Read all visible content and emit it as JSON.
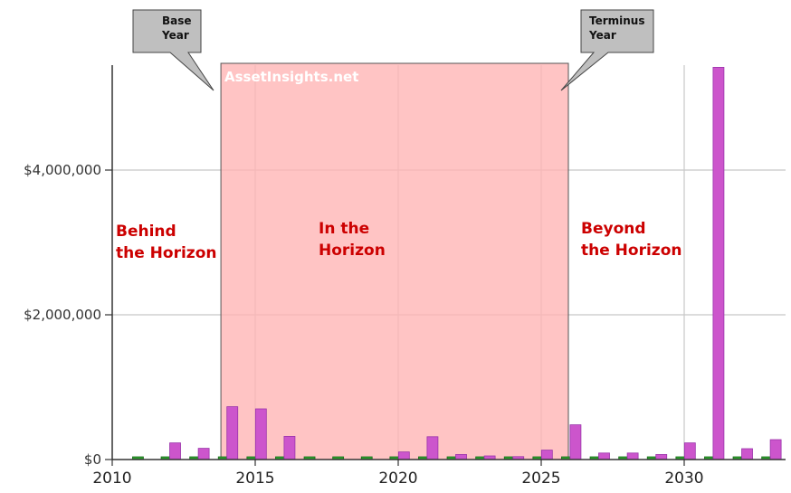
{
  "chart_data": {
    "type": "bar",
    "title": "",
    "xlabel": "",
    "ylabel": "",
    "xlim": [
      2010,
      2033.6
    ],
    "ylim": [
      0,
      5600000
    ],
    "x_ticks": [
      2010,
      2015,
      2020,
      2025,
      2030
    ],
    "x_tick_labels": [
      "2010",
      "2015",
      "2020",
      "2025",
      "2030"
    ],
    "y_ticks": [
      0,
      2000000,
      4000000
    ],
    "y_tick_labels": [
      "$0",
      "$2,000,000",
      "$4,000,000"
    ],
    "grid": true,
    "series": [
      {
        "color": "#2e9e2e",
        "points": [
          {
            "x": 2010.9,
            "y": 35000
          },
          {
            "x": 2011.9,
            "y": 35000
          },
          {
            "x": 2012.9,
            "y": 35000
          },
          {
            "x": 2013.9,
            "y": 35000
          },
          {
            "x": 2014.9,
            "y": 35000
          },
          {
            "x": 2015.9,
            "y": 35000
          },
          {
            "x": 2016.9,
            "y": 35000
          },
          {
            "x": 2017.9,
            "y": 35000
          },
          {
            "x": 2018.9,
            "y": 35000
          },
          {
            "x": 2019.9,
            "y": 35000
          },
          {
            "x": 2020.9,
            "y": 35000
          },
          {
            "x": 2021.9,
            "y": 35000
          },
          {
            "x": 2022.9,
            "y": 35000
          },
          {
            "x": 2023.9,
            "y": 35000
          },
          {
            "x": 2024.9,
            "y": 35000
          },
          {
            "x": 2025.9,
            "y": 35000
          },
          {
            "x": 2026.9,
            "y": 35000
          },
          {
            "x": 2027.9,
            "y": 35000
          },
          {
            "x": 2028.9,
            "y": 35000
          },
          {
            "x": 2029.9,
            "y": 35000
          },
          {
            "x": 2030.9,
            "y": 35000
          },
          {
            "x": 2031.9,
            "y": 35000
          },
          {
            "x": 2032.9,
            "y": 35000
          }
        ]
      },
      {
        "color": "#cc55cc",
        "points": [
          {
            "x": 2012.2,
            "y": 230000
          },
          {
            "x": 2013.2,
            "y": 155000
          },
          {
            "x": 2014.2,
            "y": 730000
          },
          {
            "x": 2015.2,
            "y": 700000
          },
          {
            "x": 2016.2,
            "y": 320000
          },
          {
            "x": 2020.2,
            "y": 105000
          },
          {
            "x": 2021.2,
            "y": 315000
          },
          {
            "x": 2022.2,
            "y": 70000
          },
          {
            "x": 2023.2,
            "y": 50000
          },
          {
            "x": 2024.2,
            "y": 40000
          },
          {
            "x": 2025.2,
            "y": 130000
          },
          {
            "x": 2026.2,
            "y": 480000
          },
          {
            "x": 2027.2,
            "y": 90000
          },
          {
            "x": 2028.2,
            "y": 90000
          },
          {
            "x": 2029.2,
            "y": 70000
          },
          {
            "x": 2030.2,
            "y": 230000
          },
          {
            "x": 2031.2,
            "y": 5420000
          },
          {
            "x": 2032.2,
            "y": 150000
          },
          {
            "x": 2033.2,
            "y": 275000
          }
        ]
      }
    ],
    "shaded_region": {
      "x_start": 2013.8,
      "x_end": 2025.95,
      "color": "#ffb3b3"
    },
    "annotations": {
      "watermark": "AssetInsights.net",
      "behind": [
        "Behind",
        "the Horizon"
      ],
      "in": [
        "In the",
        "Horizon"
      ],
      "beyond": [
        "Beyond",
        "the Horizon"
      ],
      "base_year": [
        "Base",
        "Year"
      ],
      "terminus_year": [
        "Terminus",
        "Year"
      ]
    },
    "annotation_color": "#cc0000"
  }
}
